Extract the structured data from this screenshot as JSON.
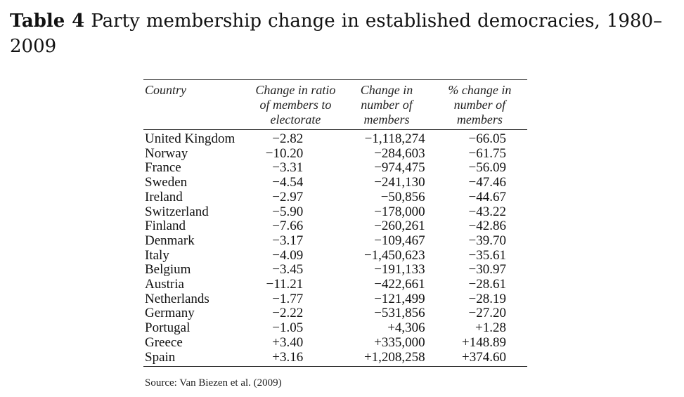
{
  "caption": {
    "label": "Table 4",
    "title": "Party membership change in established democracies, 1980–2009"
  },
  "table": {
    "headers": [
      "Country",
      "Change in ratio of members to electorate",
      "Change in number of members",
      "% change in number of members"
    ],
    "rows": [
      [
        "United Kingdom",
        "−2.82",
        "−1,118,274",
        "−66.05"
      ],
      [
        "Norway",
        "−10.20",
        "−284,603",
        "−61.75"
      ],
      [
        "France",
        "−3.31",
        "−974,475",
        "−56.09"
      ],
      [
        "Sweden",
        "−4.54",
        "−241,130",
        "−47.46"
      ],
      [
        "Ireland",
        "−2.97",
        "−50,856",
        "−44.67"
      ],
      [
        "Switzerland",
        "−5.90",
        "−178,000",
        "−43.22"
      ],
      [
        "Finland",
        "−7.66",
        "−260,261",
        "−42.86"
      ],
      [
        "Denmark",
        "−3.17",
        "−109,467",
        "−39.70"
      ],
      [
        "Italy",
        "−4.09",
        "−1,450,623",
        "−35.61"
      ],
      [
        "Belgium",
        "−3.45",
        "−191,133",
        "−30.97"
      ],
      [
        "Austria",
        "−11.21",
        "−422,661",
        "−28.61"
      ],
      [
        "Netherlands",
        "−1.77",
        "−121,499",
        "−28.19"
      ],
      [
        "Germany",
        "−2.22",
        "−531,856",
        "−27.20"
      ],
      [
        "Portugal",
        "−1.05",
        "+4,306",
        "+1.28"
      ],
      [
        "Greece",
        "+3.40",
        "+335,000",
        "+148.89"
      ],
      [
        "Spain",
        "+3.16",
        "+1,208,258",
        "+374.60"
      ]
    ]
  },
  "source": "Source: Van Biezen et al. (2009)"
}
